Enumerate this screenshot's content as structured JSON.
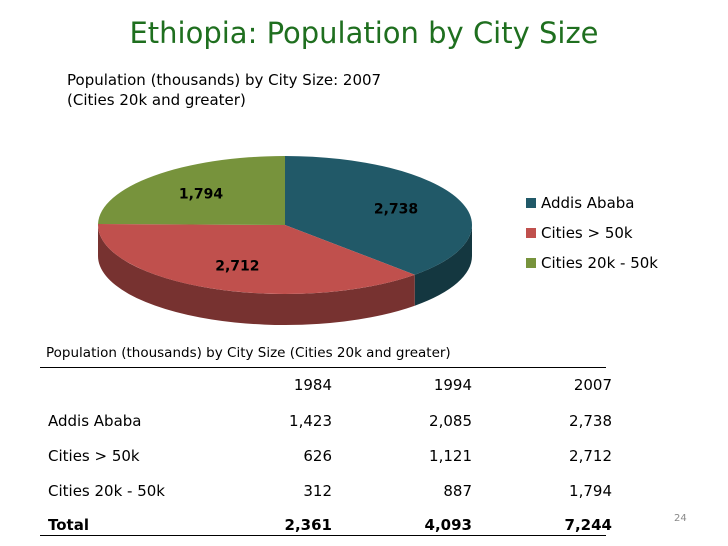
{
  "slide": {
    "title": "Ethiopia: Population by City Size",
    "page_number": "24"
  },
  "chart_data": {
    "type": "pie",
    "title_line1": "Population (thousands) by City Size: 2007",
    "title_line2": "(Cities 20k and greater)",
    "categories": [
      "Addis Ababa",
      "Cities > 50k",
      "Cities  20k - 50k"
    ],
    "values": [
      2738,
      2712,
      1794
    ],
    "value_labels": [
      "2,738",
      "2,712",
      "1,794"
    ],
    "colors": [
      "#215968",
      "#c0504d",
      "#77933c"
    ],
    "legend_position": "right"
  },
  "table": {
    "caption": "Population (thousands) by City Size  (Cities 20k and greater)",
    "headers": [
      "",
      "1984",
      "1994",
      "2007"
    ],
    "rows": [
      [
        "Addis Ababa",
        "1,423",
        "2,085",
        "2,738"
      ],
      [
        "Cities > 50k",
        "626",
        "1,121",
        "2,712"
      ],
      [
        "Cities  20k - 50k",
        "312",
        "887",
        "1,794"
      ]
    ],
    "total": [
      "Total",
      "2,361",
      "4,093",
      "7,244"
    ]
  }
}
